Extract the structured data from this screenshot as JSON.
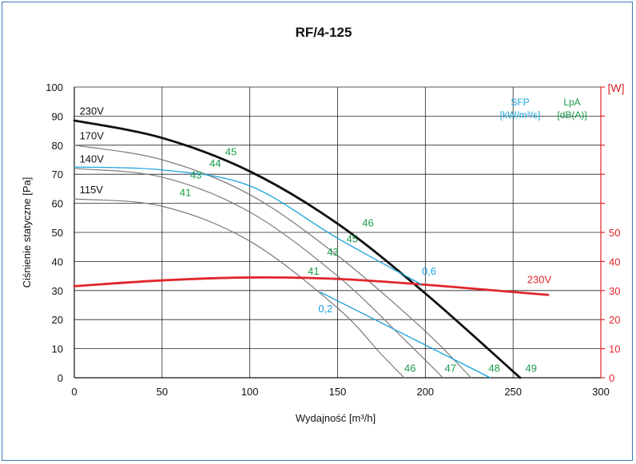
{
  "chart_data": {
    "type": "line",
    "title": "RF/4-125",
    "xlabel": "Wydajność [m³/h]",
    "ylabel": "Ciśnienie statyczne [Pa]",
    "y2label": "[W]",
    "xlim": [
      0,
      300
    ],
    "ylim": [
      0,
      100
    ],
    "y2lim": [
      0,
      100
    ],
    "xticks": [
      "0",
      "50",
      "100",
      "150",
      "200",
      "250",
      "300"
    ],
    "yticks": [
      "0",
      "10",
      "20",
      "30",
      "40",
      "50",
      "60",
      "70",
      "80",
      "90",
      "100"
    ],
    "y2ticks": [
      "0",
      "10",
      "20",
      "30",
      "40",
      "50"
    ],
    "grid": true,
    "legend": {
      "sfp_label": "SFP",
      "sfp_unit": "[kW/m³/s]",
      "lpa_label": "LpA",
      "lpa_unit": "[dB(A)]",
      "position": "top-right"
    },
    "colors": {
      "fan_curve_main": "#111111",
      "fan_curve_other": "#7a7a7a",
      "power": "#e0262b",
      "sfp": "#1aa3dc",
      "lpa": "#1a9a4a",
      "axis_right": "#e0262b",
      "grid": "#222222"
    },
    "series": [
      {
        "name": "230V",
        "kind": "fan",
        "points": [
          [
            0,
            88.5
          ],
          [
            50,
            82.5
          ],
          [
            100,
            71
          ],
          [
            150,
            53
          ],
          [
            200,
            29
          ],
          [
            254,
            0
          ]
        ]
      },
      {
        "name": "170V",
        "kind": "fan",
        "points": [
          [
            0,
            80
          ],
          [
            50,
            75
          ],
          [
            100,
            63
          ],
          [
            150,
            42
          ],
          [
            200,
            16
          ],
          [
            226,
            0
          ]
        ]
      },
      {
        "name": "140V",
        "kind": "fan",
        "points": [
          [
            0,
            72
          ],
          [
            50,
            69
          ],
          [
            100,
            57
          ],
          [
            150,
            35
          ],
          [
            190,
            12
          ],
          [
            210,
            0
          ]
        ]
      },
      {
        "name": "115V",
        "kind": "fan",
        "points": [
          [
            0,
            61.5
          ],
          [
            50,
            59
          ],
          [
            100,
            47
          ],
          [
            150,
            24
          ],
          [
            175,
            8
          ],
          [
            188,
            0
          ]
        ]
      },
      {
        "name": "230V",
        "kind": "power",
        "axis": "right",
        "points": [
          [
            0,
            31.5
          ],
          [
            50,
            33.5
          ],
          [
            100,
            34.5
          ],
          [
            150,
            34
          ],
          [
            200,
            32
          ],
          [
            250,
            29.5
          ],
          [
            270,
            28.5
          ]
        ]
      }
    ],
    "sfp_lines": [
      {
        "label": "0,6",
        "points": [
          [
            0,
            72.5
          ],
          [
            50,
            71.5
          ],
          [
            100,
            66
          ],
          [
            150,
            48
          ],
          [
            198,
            32
          ]
        ]
      },
      {
        "label": "0,2",
        "points": [
          [
            140,
            29.5
          ],
          [
            237,
            0
          ]
        ]
      }
    ],
    "sfp_labels": [
      {
        "text": "0,6",
        "x": 198,
        "y": 35.5
      },
      {
        "text": "0,2",
        "x": 139,
        "y": 22.5
      }
    ],
    "lpa_labels": [
      {
        "text": "45",
        "x": 86,
        "y": 76.5
      },
      {
        "text": "44",
        "x": 77,
        "y": 72.5
      },
      {
        "text": "43",
        "x": 66,
        "y": 68.5
      },
      {
        "text": "41",
        "x": 60,
        "y": 62.5
      },
      {
        "text": "46",
        "x": 164,
        "y": 52
      },
      {
        "text": "45",
        "x": 155,
        "y": 46.5
      },
      {
        "text": "43",
        "x": 144,
        "y": 42
      },
      {
        "text": "41",
        "x": 133,
        "y": 35.5
      },
      {
        "text": "46",
        "x": 188,
        "y": 2
      },
      {
        "text": "47",
        "x": 211,
        "y": 2
      },
      {
        "text": "48",
        "x": 236,
        "y": 2
      },
      {
        "text": "49",
        "x": 257,
        "y": 2
      }
    ],
    "curve_labels": [
      {
        "text": "230V",
        "x": 3,
        "y": 90.5
      },
      {
        "text": "170V",
        "x": 3,
        "y": 82
      },
      {
        "text": "140V",
        "x": 3,
        "y": 74
      },
      {
        "text": "115V",
        "x": 3,
        "y": 63.5
      },
      {
        "text": "230V",
        "x": 258,
        "y": 32.5,
        "color": "power"
      }
    ]
  }
}
